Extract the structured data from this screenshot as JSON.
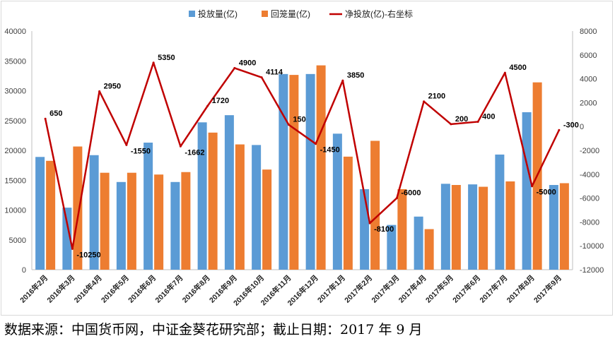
{
  "chart_data": {
    "type": "bar+line",
    "title": "",
    "categories": [
      "2016年2月",
      "2016年3月",
      "2016年4月",
      "2016年5月",
      "2016年6月",
      "2016年7月",
      "2016年8月",
      "2016年9月",
      "2016年10月",
      "2016年11月",
      "2016年12月",
      "2017年1月",
      "2017年2月",
      "2017年3月",
      "2017年4月",
      "2017年5月",
      "2017年6月",
      "2017年7月",
      "2017年8月",
      "2017年9月"
    ],
    "series": [
      {
        "name": "投放量(亿)",
        "type": "bar",
        "axis": "left",
        "color": "#5B9BD5",
        "values": [
          18900,
          10400,
          19200,
          14700,
          21300,
          14700,
          24700,
          25900,
          20900,
          32800,
          32800,
          22800,
          13500,
          7500,
          8900,
          14400,
          14300,
          19300,
          26400,
          14200
        ]
      },
      {
        "name": "回笼量(亿)",
        "type": "bar",
        "axis": "left",
        "color": "#ED7D31",
        "values": [
          18250,
          20650,
          16250,
          16250,
          15950,
          16362,
          22980,
          21000,
          16786,
          32650,
          34250,
          18950,
          21600,
          13500,
          6800,
          14200,
          13900,
          14800,
          31400,
          14500
        ]
      },
      {
        "name": "净投放(亿)-右坐标",
        "type": "line",
        "axis": "right",
        "color": "#C00000",
        "values": [
          650,
          -10250,
          2950,
          -1550,
          5350,
          -1662,
          1720,
          4900,
          4114,
          150,
          -1450,
          3850,
          -8100,
          -6000,
          2100,
          200,
          400,
          4500,
          -5000,
          -300
        ]
      }
    ],
    "left_axis": {
      "min": 0,
      "max": 40000,
      "step": 5000,
      "ticks": [
        "0",
        "5000",
        "10000",
        "15000",
        "20000",
        "25000",
        "30000",
        "35000",
        "40000"
      ]
    },
    "right_axis": {
      "min": -12000,
      "max": 8000,
      "step": 2000,
      "ticks": [
        "-12000",
        "-10000",
        "-8000",
        "-6000",
        "-4000",
        "-2000",
        "0",
        "2000",
        "4000",
        "6000",
        "8000"
      ]
    },
    "legend": "top-center",
    "grid": false
  },
  "source_note": "数据来源：中国货币网，中证金葵花研究部；截止日期：2017 年 9 月"
}
